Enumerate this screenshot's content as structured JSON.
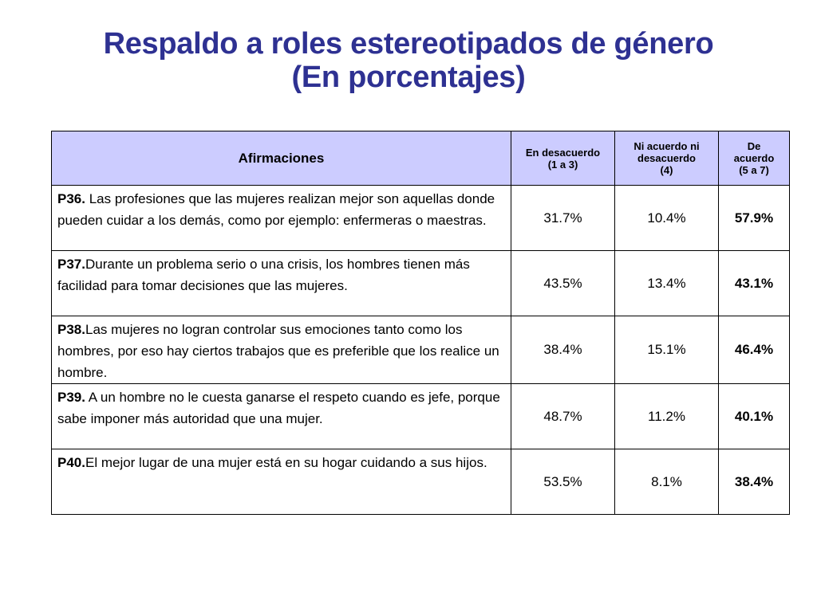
{
  "title": {
    "line1": "Respaldo a roles estereotipados de género",
    "line2": "(En porcentajes)"
  },
  "table": {
    "headers": {
      "afirmaciones": "Afirmaciones",
      "desacuerdo": [
        "En desacuerdo",
        "(1 a 3)"
      ],
      "ni": [
        "Ni acuerdo ni",
        "desacuerdo",
        "(4)"
      ],
      "acuerdo": [
        "De",
        "acuerdo",
        "(5 a 7)"
      ]
    },
    "rows": [
      {
        "code": "P36.",
        "text": " Las profesiones que las mujeres realizan mejor son aquellas donde pueden cuidar a los demás, como por ejemplo: enfermeras o maestras.",
        "desacuerdo": "31.7%",
        "ni": "10.4%",
        "acuerdo": "57.9%"
      },
      {
        "code": "P37.",
        "text": "Durante un problema serio o una crisis, los hombres tienen más facilidad para tomar decisiones que las mujeres.",
        "desacuerdo": "43.5%",
        "ni": "13.4%",
        "acuerdo": "43.1%"
      },
      {
        "code": "P38.",
        "text": "Las mujeres no logran controlar sus emociones tanto como los hombres, por eso hay ciertos trabajos que es preferible que los realice un hombre.",
        "desacuerdo": "38.4%",
        "ni": "15.1%",
        "acuerdo": "46.4%"
      },
      {
        "code": "P39.",
        "text": " A un hombre no le cuesta ganarse el respeto cuando es jefe, porque sabe imponer más autoridad que una mujer.",
        "desacuerdo": "48.7%",
        "ni": "11.2%",
        "acuerdo": "40.1%"
      },
      {
        "code": "P40.",
        "text": "El mejor lugar de una mujer está en su hogar cuidando a sus hijos.",
        "desacuerdo": "53.5%",
        "ni": "8.1%",
        "acuerdo": "38.4%"
      }
    ]
  }
}
